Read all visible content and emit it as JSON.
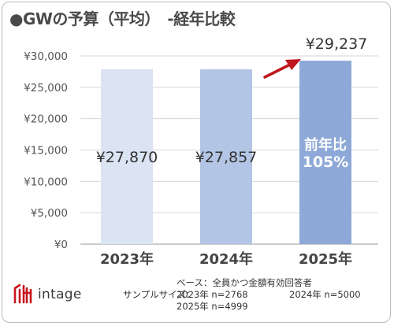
{
  "title": "●GWの予算（平均）　-経年比較",
  "brand": {
    "logo_text": "intage",
    "logo_color": "#c8161d"
  },
  "notes": {
    "base": "ベース：全員かつ金額有効回答者",
    "sample_label": "サンプルサイズ：",
    "sample_2023": "2023年 n=2768",
    "sample_2024": "2024年 n=5000",
    "sample_2025": "2025年 n=4999"
  },
  "chart_data": {
    "type": "bar",
    "categories": [
      "2023年",
      "2024年",
      "2025年"
    ],
    "values": [
      27870,
      27857,
      29237
    ],
    "bar_labels": [
      "¥27,870",
      "¥27,857",
      "¥29,237"
    ],
    "bar_colors": [
      "#dbe4f3",
      "#b3c5e4",
      "#8ea9d8"
    ],
    "ylim": [
      0,
      30000
    ],
    "yticks": [
      0,
      5000,
      10000,
      15000,
      20000,
      25000,
      30000
    ],
    "ytick_labels": [
      "¥0",
      "¥5,000",
      "¥10,000",
      "¥15,000",
      "¥20,000",
      "¥25,000",
      "¥30,000"
    ],
    "grid": true,
    "annotation": {
      "line1": "前年比",
      "line2": "105%",
      "color": "#ffffff"
    },
    "arrow_color": "#c0161d"
  }
}
